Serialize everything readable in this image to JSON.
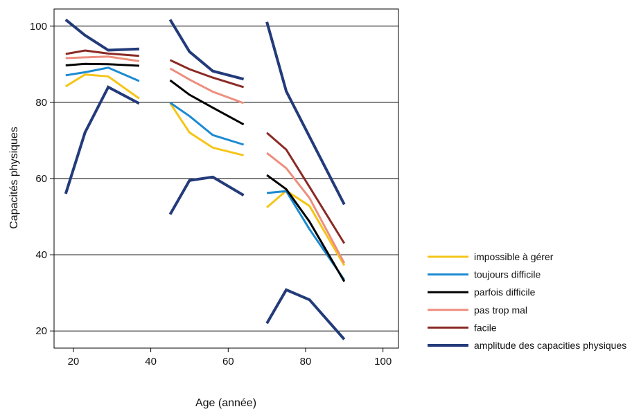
{
  "chart_data": {
    "type": "line",
    "xlabel": "Age (année)",
    "ylabel": "Capacités physiques",
    "xlim": [
      15,
      104
    ],
    "ylim": [
      15.5,
      104.5
    ],
    "xticks": [
      20,
      40,
      60,
      80,
      100
    ],
    "yticks": [
      20,
      40,
      60,
      80,
      100
    ],
    "grid": "horizontal",
    "legend_position": "right",
    "series": [
      {
        "name": "impossible à gérer",
        "color": "#f5c518",
        "width": 3,
        "segments": [
          [
            [
              18,
              84.2
            ],
            [
              23,
              87.3
            ],
            [
              29,
              86.8
            ],
            [
              37,
              81.0
            ]
          ],
          [
            [
              45,
              79.8
            ],
            [
              50,
              72.1
            ],
            [
              56,
              68.1
            ],
            [
              64,
              66.1
            ]
          ],
          [
            [
              70,
              52.4
            ],
            [
              75,
              56.8
            ],
            [
              81,
              52.8
            ],
            [
              90,
              37.2
            ]
          ]
        ]
      },
      {
        "name": "toujours difficile",
        "color": "#1b8ad1",
        "width": 3,
        "segments": [
          [
            [
              18,
              87.1
            ],
            [
              23,
              87.9
            ],
            [
              29,
              89.1
            ],
            [
              37,
              85.6
            ]
          ],
          [
            [
              45,
              79.9
            ],
            [
              50,
              76.4
            ],
            [
              56,
              71.4
            ],
            [
              64,
              68.9
            ]
          ],
          [
            [
              70,
              56.2
            ],
            [
              75,
              56.7
            ],
            [
              81,
              46.7
            ],
            [
              90,
              33.4
            ]
          ]
        ]
      },
      {
        "name": "parfois difficile",
        "color": "#000000",
        "width": 3,
        "segments": [
          [
            [
              18,
              89.7
            ],
            [
              23,
              90.1
            ],
            [
              29,
              90.0
            ],
            [
              37,
              89.6
            ]
          ],
          [
            [
              45,
              85.8
            ],
            [
              50,
              82.0
            ],
            [
              56,
              78.6
            ],
            [
              64,
              74.2
            ]
          ],
          [
            [
              70,
              60.9
            ],
            [
              75,
              57.2
            ],
            [
              81,
              48.7
            ],
            [
              90,
              33.0
            ]
          ]
        ]
      },
      {
        "name": "pas trop mal",
        "color": "#ee8e7e",
        "width": 3,
        "segments": [
          [
            [
              18,
              91.6
            ],
            [
              23,
              91.8
            ],
            [
              29,
              92.0
            ],
            [
              37,
              90.8
            ]
          ],
          [
            [
              45,
              88.9
            ],
            [
              50,
              86.0
            ],
            [
              56,
              82.8
            ],
            [
              64,
              79.8
            ]
          ],
          [
            [
              70,
              66.7
            ],
            [
              75,
              62.7
            ],
            [
              81,
              54.9
            ],
            [
              90,
              37.8
            ]
          ]
        ]
      },
      {
        "name": "facile",
        "color": "#8b2a25",
        "width": 3,
        "segments": [
          [
            [
              18,
              92.7
            ],
            [
              23,
              93.6
            ],
            [
              29,
              92.8
            ],
            [
              37,
              92.2
            ]
          ],
          [
            [
              45,
              91.1
            ],
            [
              50,
              88.7
            ],
            [
              56,
              86.5
            ],
            [
              64,
              84.0
            ]
          ],
          [
            [
              70,
              72.0
            ],
            [
              75,
              67.6
            ],
            [
              81,
              57.8
            ],
            [
              90,
              43.0
            ]
          ]
        ]
      },
      {
        "name": "amplitude des capacities physiques",
        "color": "#233b7a",
        "width": 4,
        "segments": [
          [
            [
              18,
              101.7
            ],
            [
              23,
              97.6
            ],
            [
              29,
              93.7
            ],
            [
              37,
              94.0
            ]
          ],
          [
            [
              18,
              56.0
            ],
            [
              23,
              72.1
            ],
            [
              29,
              84.0
            ],
            [
              37,
              79.7
            ]
          ],
          [
            [
              45,
              101.7
            ],
            [
              50,
              93.3
            ],
            [
              56,
              88.2
            ],
            [
              64,
              86.1
            ]
          ],
          [
            [
              45,
              50.6
            ],
            [
              50,
              59.5
            ],
            [
              56,
              60.4
            ],
            [
              64,
              55.6
            ]
          ],
          [
            [
              70,
              101.1
            ],
            [
              75,
              82.9
            ],
            [
              81,
              71.0
            ],
            [
              90,
              53.2
            ]
          ],
          [
            [
              70,
              22.0
            ],
            [
              75,
              30.8
            ],
            [
              81,
              28.2
            ],
            [
              90,
              17.8
            ]
          ]
        ]
      }
    ]
  }
}
